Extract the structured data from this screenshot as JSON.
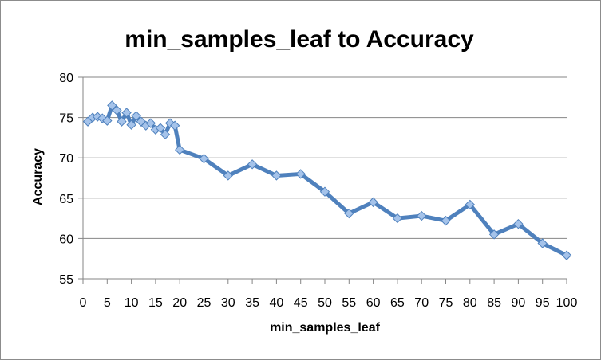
{
  "chart_data": {
    "type": "line",
    "title": "min_samples_leaf to Accuracy",
    "xlabel": "min_samples_leaf",
    "ylabel": "Accuracy",
    "xlim": [
      0,
      100
    ],
    "ylim": [
      55,
      80
    ],
    "x_ticks": [
      0,
      5,
      10,
      15,
      20,
      25,
      30,
      35,
      40,
      45,
      50,
      55,
      60,
      65,
      70,
      75,
      80,
      85,
      90,
      95,
      100
    ],
    "y_ticks": [
      55,
      60,
      65,
      70,
      75,
      80
    ],
    "grid": "horizontal",
    "legend": "none",
    "colors": {
      "line": "#4f81bd",
      "marker_fill": "#a5c3ea",
      "marker_stroke": "#4f81bd",
      "grid": "#868686"
    },
    "series": [
      {
        "x": [
          1,
          2,
          3,
          4,
          5,
          6,
          7,
          8,
          9,
          10,
          11,
          12,
          13,
          14,
          15,
          16,
          17,
          18,
          19,
          20,
          25,
          30,
          35,
          40,
          45,
          50,
          55,
          60,
          65,
          70,
          75,
          80,
          85,
          90,
          95,
          100
        ],
        "values": [
          74.5,
          75.0,
          75.1,
          74.9,
          74.6,
          76.5,
          75.9,
          74.5,
          75.6,
          74.1,
          75.2,
          74.5,
          74.0,
          74.3,
          73.5,
          73.7,
          72.9,
          74.3,
          74.0,
          71.0,
          69.9,
          67.8,
          69.2,
          67.8,
          68.0,
          65.8,
          63.1,
          64.5,
          62.5,
          62.8,
          62.2,
          64.2,
          60.5,
          61.8,
          59.4,
          57.9
        ]
      }
    ]
  }
}
